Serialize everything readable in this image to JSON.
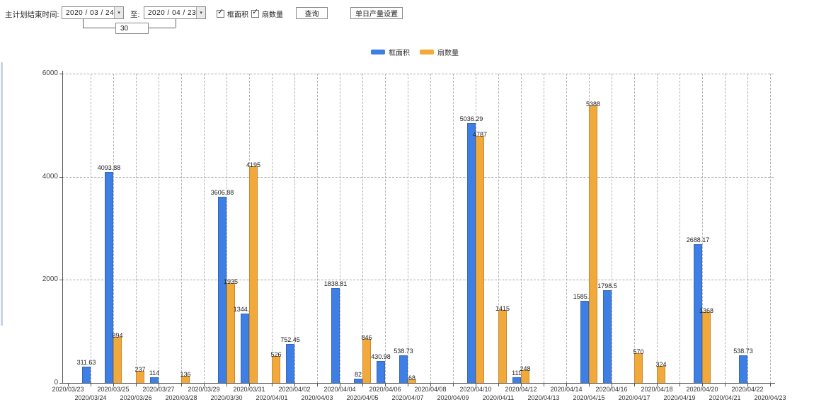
{
  "toolbar": {
    "main_label": "主计划结束时间:",
    "date_from": "2020 / 03 / 24",
    "to_label": "至:",
    "date_to": "2020 / 04 / 23",
    "interval_value": "30",
    "area_checkbox": "框面积",
    "fan_checkbox": "扇数量",
    "query_button": "查询",
    "daily_output_button": "单日产量设置"
  },
  "icons": {
    "dropdown": "▾",
    "check": "✓"
  },
  "chart_data": {
    "type": "bar",
    "title": "",
    "xlabel": "",
    "ylabel": "",
    "ylim": [
      0,
      6000
    ],
    "yticks": [
      0,
      2000,
      4000,
      6000
    ],
    "grid": "dashed",
    "legend_position": "top",
    "categories": [
      "2020/03/23",
      "2020/03/24",
      "2020/03/25",
      "2020/03/26",
      "2020/03/27",
      "2020/03/28",
      "2020/03/29",
      "2020/03/30",
      "2020/03/31",
      "2020/04/01",
      "2020/04/02",
      "2020/04/03",
      "2020/04/04",
      "2020/04/05",
      "2020/04/06",
      "2020/04/07",
      "2020/04/08",
      "2020/04/09",
      "2020/04/10",
      "2020/04/11",
      "2020/04/12",
      "2020/04/13",
      "2020/04/14",
      "2020/04/15",
      "2020/04/16",
      "2020/04/17",
      "2020/04/18",
      "2020/04/19",
      "2020/04/20",
      "2020/04/21",
      "2020/04/22",
      "2020/04/23"
    ],
    "series": [
      {
        "name": "框面积",
        "color": "#3d7fe4",
        "values": [
          null,
          311.63,
          4093.88,
          null,
          114,
          null,
          null,
          3606.88,
          1344.95,
          null,
          752.45,
          null,
          1838.81,
          82,
          430.98,
          538.73,
          null,
          null,
          5036.29,
          null,
          111,
          null,
          null,
          1585.96,
          1798.5,
          null,
          null,
          null,
          2688.17,
          null,
          538.73,
          null
        ]
      },
      {
        "name": "扇数量",
        "color": "#f2a93b",
        "values": [
          null,
          null,
          894,
          237,
          null,
          136,
          null,
          1935,
          4195,
          526,
          null,
          null,
          null,
          846,
          null,
          68,
          null,
          null,
          4787,
          1415,
          248,
          null,
          null,
          5388,
          null,
          570,
          324,
          null,
          1368,
          null,
          null,
          null
        ]
      }
    ]
  }
}
